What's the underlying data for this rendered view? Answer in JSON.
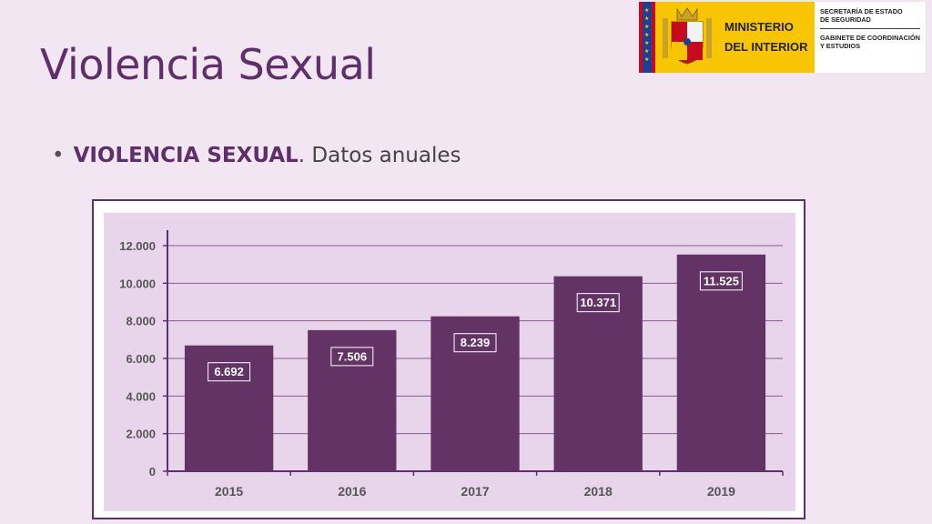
{
  "slide": {
    "title": "Violencia Sexual",
    "bullet_strong": "VIOLENCIA SEXUAL",
    "bullet_rest": ". Datos anuales"
  },
  "logo": {
    "ministry_line1": "MINISTERIO",
    "ministry_line2": "DEL  INTERIOR",
    "secretaria_line1": "SECRETARÍA DE ESTADO",
    "secretaria_line2": "DE SEGURIDAD",
    "gabinete_line1": "GABINETE DE COORDINACIÓN",
    "gabinete_line2": "Y ESTUDIOS"
  },
  "colors": {
    "bar": "#633366",
    "plot_bg": "#e8d4eb",
    "grid": "#8a5a93",
    "axis": "#5e2f6a",
    "title": "#5e2f6a"
  },
  "chart_data": {
    "type": "bar",
    "categories": [
      "2015",
      "2016",
      "2017",
      "2018",
      "2019"
    ],
    "values": [
      6692,
      7506,
      8239,
      10371,
      11525
    ],
    "value_labels": [
      "6.692",
      "7.506",
      "8.239",
      "10.371",
      "11.525"
    ],
    "yticks": [
      0,
      2000,
      4000,
      6000,
      8000,
      10000,
      12000
    ],
    "ytick_labels": [
      "0",
      "2.000",
      "4.000",
      "6.000",
      "8.000",
      "10.000",
      "12.000"
    ],
    "ylim": [
      0,
      12000
    ],
    "grid": true,
    "legend": "none"
  }
}
